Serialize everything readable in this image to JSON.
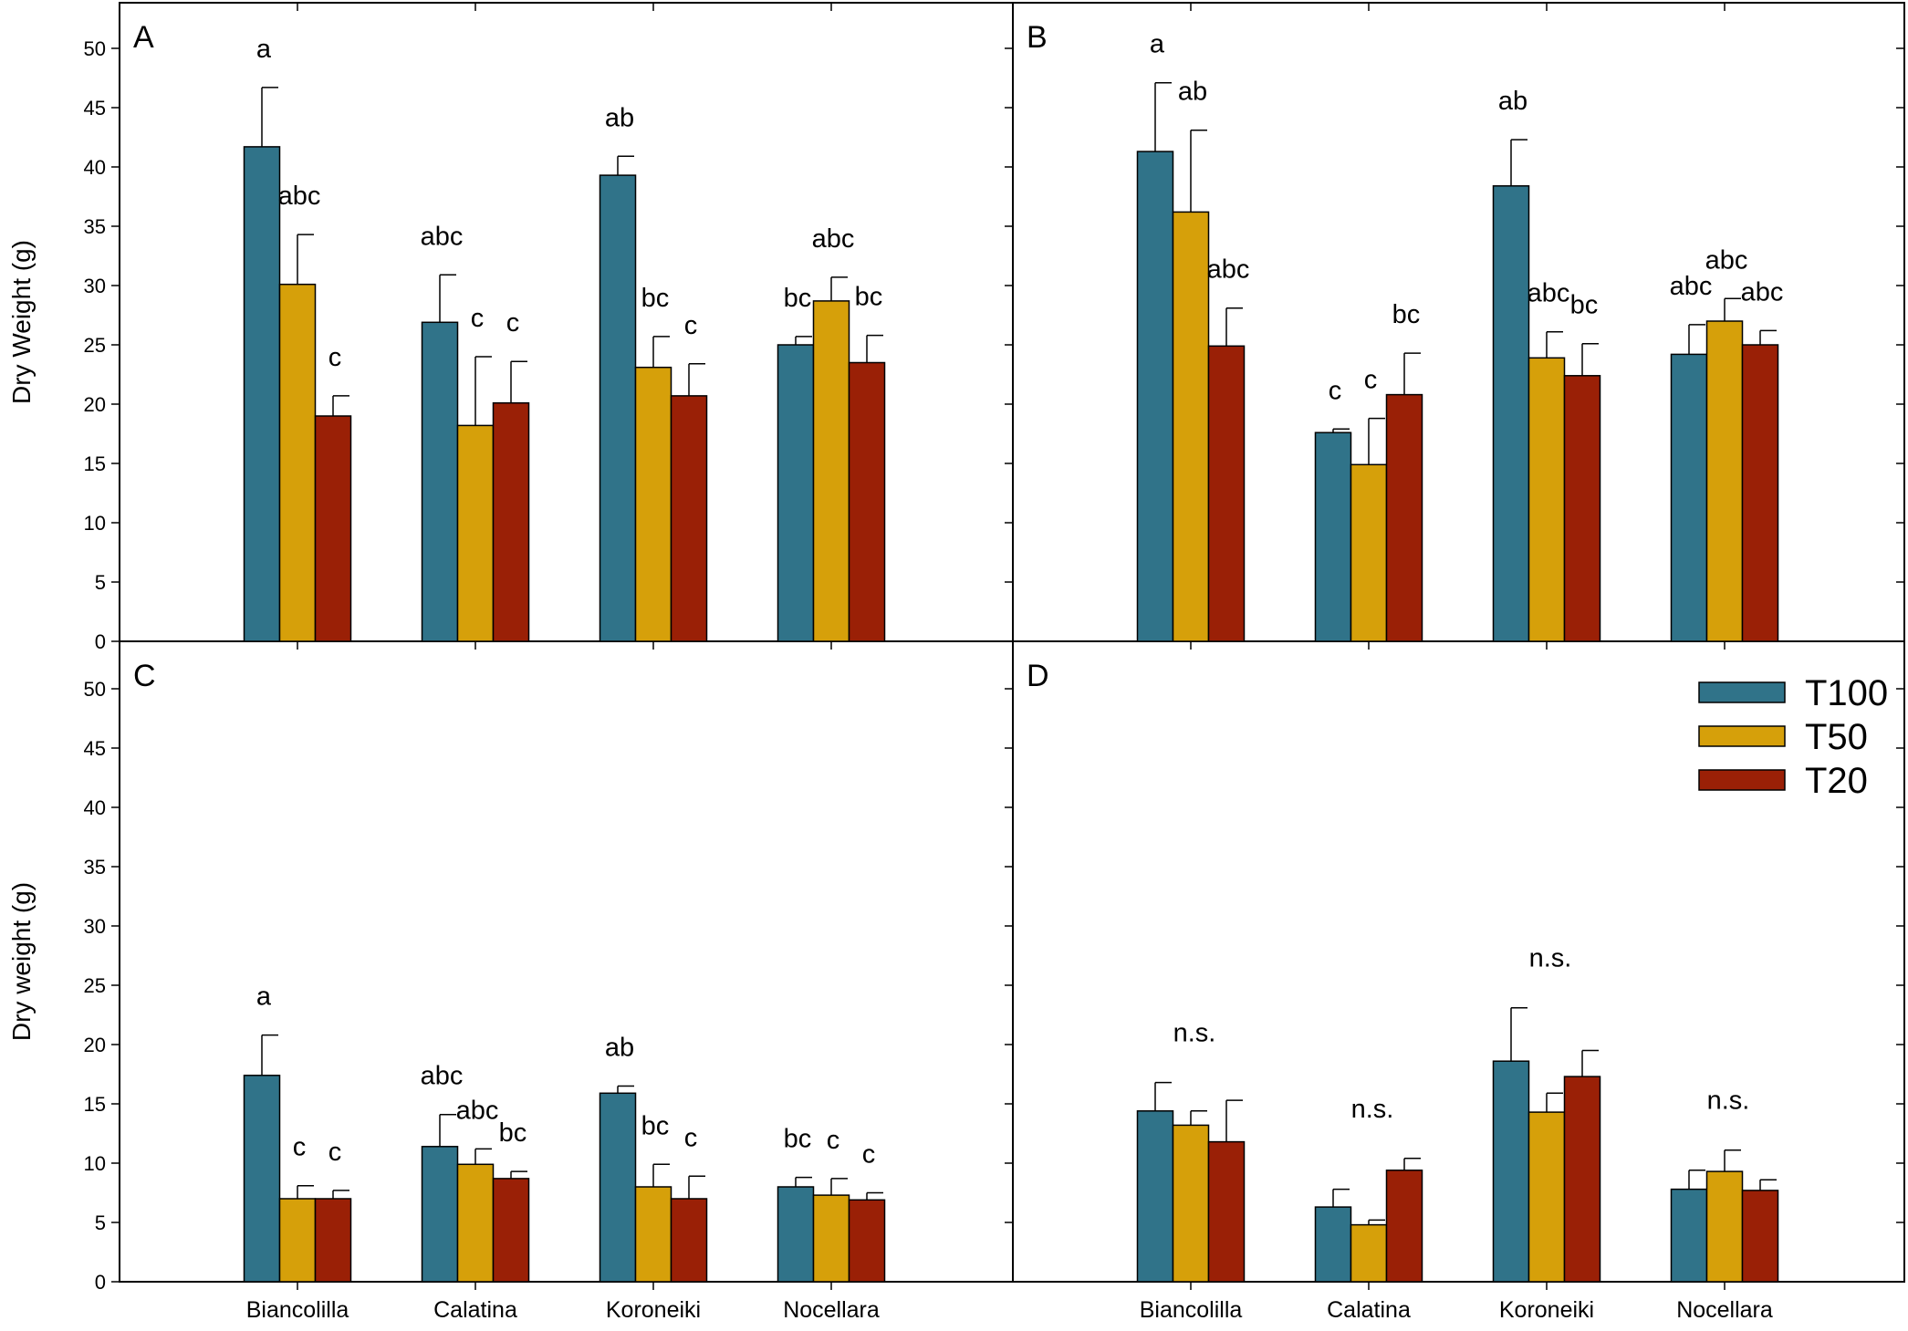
{
  "colors": {
    "T100": "#307389",
    "T50": "#D6A00A",
    "T20": "#9A2006"
  },
  "axis": {
    "ylim": [
      0,
      53
    ],
    "yticks": [
      0,
      5,
      10,
      15,
      20,
      25,
      30,
      35,
      40,
      45,
      50
    ]
  },
  "categories": [
    "Biancolilla",
    "Calatina",
    "Koroneiki",
    "Nocellara"
  ],
  "series_names": [
    "T100",
    "T50",
    "T20"
  ],
  "y_labels": {
    "top": "Dry Weight (g)",
    "bottom": "Dry weight (g)"
  },
  "legend": {
    "panel": "D",
    "entries": [
      "T100",
      "T50",
      "T20"
    ]
  },
  "chart_data": [
    {
      "type": "bar",
      "panel": "A",
      "ylabel": "Dry Weight (g)",
      "categories": [
        "Biancolilla",
        "Calatina",
        "Koroneiki",
        "Nocellara"
      ],
      "series": [
        {
          "name": "T100",
          "values": [
            41.7,
            26.9,
            39.3,
            25.0
          ],
          "errors": [
            5.0,
            4.0,
            1.6,
            0.7
          ]
        },
        {
          "name": "T50",
          "values": [
            30.1,
            18.2,
            23.1,
            28.7
          ],
          "errors": [
            4.2,
            5.8,
            2.6,
            2.0
          ]
        },
        {
          "name": "T20",
          "values": [
            19.0,
            20.1,
            20.7,
            23.5
          ],
          "errors": [
            1.7,
            3.5,
            2.7,
            2.3
          ]
        }
      ],
      "labels": [
        [
          "a",
          "abc",
          "c"
        ],
        [
          "abc",
          "c",
          "c"
        ],
        [
          "ab",
          "bc",
          "c"
        ],
        [
          "bc",
          "abc",
          "bc"
        ]
      ]
    },
    {
      "type": "bar",
      "panel": "B",
      "ylabel": "",
      "categories": [
        "Biancolilla",
        "Calatina",
        "Koroneiki",
        "Nocellara"
      ],
      "series": [
        {
          "name": "T100",
          "values": [
            41.3,
            17.6,
            38.4,
            24.2
          ],
          "errors": [
            5.8,
            0.3,
            3.9,
            2.5
          ]
        },
        {
          "name": "T50",
          "values": [
            36.2,
            14.9,
            23.9,
            27.0
          ],
          "errors": [
            6.9,
            3.9,
            2.2,
            1.9
          ]
        },
        {
          "name": "T20",
          "values": [
            24.9,
            20.8,
            22.4,
            25.0
          ],
          "errors": [
            3.2,
            3.5,
            2.7,
            1.2
          ]
        }
      ],
      "labels": [
        [
          "a",
          "ab",
          "abc"
        ],
        [
          "c",
          "c",
          "bc"
        ],
        [
          "ab",
          "abc",
          "bc"
        ],
        [
          "abc",
          "abc",
          "abc"
        ]
      ]
    },
    {
      "type": "bar",
      "panel": "C",
      "ylabel": "Dry weight (g)",
      "categories": [
        "Biancolilla",
        "Calatina",
        "Koroneiki",
        "Nocellara"
      ],
      "series": [
        {
          "name": "T100",
          "values": [
            17.4,
            11.4,
            15.9,
            8.0
          ],
          "errors": [
            3.4,
            2.7,
            0.6,
            0.8
          ]
        },
        {
          "name": "T50",
          "values": [
            7.0,
            9.9,
            8.0,
            7.3
          ],
          "errors": [
            1.1,
            1.3,
            1.9,
            1.4
          ]
        },
        {
          "name": "T20",
          "values": [
            7.0,
            8.7,
            7.0,
            6.9
          ],
          "errors": [
            0.7,
            0.6,
            1.9,
            0.6
          ]
        }
      ],
      "labels": [
        [
          "a",
          "c",
          "c"
        ],
        [
          "abc",
          "abc",
          "bc"
        ],
        [
          "ab",
          "bc",
          "c"
        ],
        [
          "bc",
          "c",
          "c"
        ]
      ]
    },
    {
      "type": "bar",
      "panel": "D",
      "ylabel": "",
      "categories": [
        "Biancolilla",
        "Calatina",
        "Koroneiki",
        "Nocellara"
      ],
      "series": [
        {
          "name": "T100",
          "values": [
            14.4,
            6.3,
            18.6,
            7.8
          ],
          "errors": [
            2.4,
            1.5,
            4.5,
            1.6
          ]
        },
        {
          "name": "T50",
          "values": [
            13.2,
            4.8,
            14.3,
            9.3
          ],
          "errors": [
            1.2,
            0.4,
            1.6,
            1.8
          ]
        },
        {
          "name": "T20",
          "values": [
            11.8,
            9.4,
            17.3,
            7.7
          ],
          "errors": [
            3.5,
            1.0,
            2.2,
            0.9
          ]
        }
      ],
      "group_labels": [
        "n.s.",
        "n.s.",
        "n.s.",
        "n.s."
      ]
    }
  ]
}
